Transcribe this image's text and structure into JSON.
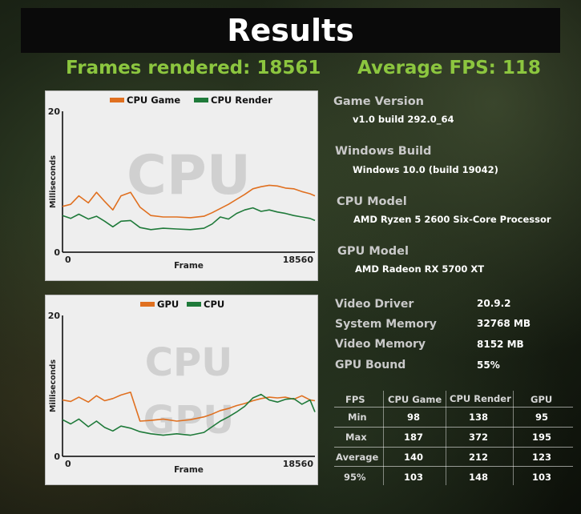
{
  "title": "Results",
  "frames_rendered": "Frames rendered: 18561",
  "average_fps": "Average FPS: 118",
  "info": [
    {
      "label": "Game Version",
      "value": "v1.0 build 292.0_64"
    },
    {
      "label": "Windows Build",
      "value": "Windows 10.0 (build 19042)"
    },
    {
      "label": "CPU Model",
      "value": "AMD Ryzen 5 2600 Six-Core Processor"
    },
    {
      "label": "GPU Model",
      "value": "AMD Radeon RX 5700 XT"
    }
  ],
  "stats": [
    {
      "label": "Video Driver",
      "value": "20.9.2"
    },
    {
      "label": "System Memory",
      "value": "32768 MB"
    },
    {
      "label": "Video Memory",
      "value": "8152 MB"
    },
    {
      "label": "GPU Bound",
      "value": "55%"
    }
  ],
  "fps_table": {
    "headers": [
      "FPS",
      "CPU Game",
      "CPU Render",
      "GPU"
    ],
    "rows": [
      {
        "label": "Min",
        "values": [
          "98",
          "138",
          "95"
        ]
      },
      {
        "label": "Max",
        "values": [
          "187",
          "372",
          "195"
        ]
      },
      {
        "label": "Average",
        "values": [
          "140",
          "212",
          "123"
        ]
      },
      {
        "label": "95%",
        "values": [
          "103",
          "148",
          "103"
        ]
      }
    ]
  },
  "colors": {
    "orange": "#e07020",
    "green": "#1f7a3a",
    "accent": "#8cc63f"
  },
  "chart_data": [
    {
      "type": "line",
      "watermark": "CPU",
      "xlabel": "Frame",
      "ylabel": "Milliseconds",
      "xlim": [
        0,
        18560
      ],
      "ylim": [
        0,
        20
      ],
      "x_ticks": [
        "0",
        "18560"
      ],
      "y_ticks": [
        "0",
        "20"
      ],
      "legend": "top-center",
      "x": [
        0,
        600,
        1200,
        1900,
        2500,
        3100,
        3700,
        4300,
        5000,
        5700,
        6500,
        7400,
        8400,
        9400,
        10400,
        11000,
        11600,
        12200,
        12800,
        13400,
        14000,
        14600,
        15200,
        15800,
        16400,
        17000,
        17600,
        18200,
        18560
      ],
      "series": [
        {
          "name": "CPU Game",
          "color": "#e07020",
          "values": [
            6.5,
            6.8,
            8.0,
            7.0,
            8.5,
            7.2,
            6.0,
            8.0,
            8.5,
            6.4,
            5.2,
            5.0,
            5.0,
            4.9,
            5.1,
            5.6,
            6.2,
            6.8,
            7.5,
            8.2,
            9.0,
            9.3,
            9.5,
            9.4,
            9.1,
            9.0,
            8.6,
            8.3,
            8.0
          ]
        },
        {
          "name": "CPU Render",
          "color": "#1f7a3a",
          "values": [
            5.2,
            4.8,
            5.4,
            4.7,
            5.1,
            4.4,
            3.6,
            4.4,
            4.5,
            3.5,
            3.2,
            3.4,
            3.3,
            3.2,
            3.4,
            4.0,
            5.0,
            4.7,
            5.5,
            6.0,
            6.3,
            5.8,
            6.0,
            5.7,
            5.5,
            5.2,
            5.0,
            4.8,
            4.5
          ]
        }
      ]
    },
    {
      "type": "line",
      "watermark": "CPU GPU",
      "xlabel": "Frame",
      "ylabel": "Milliseconds",
      "xlim": [
        0,
        18560
      ],
      "ylim": [
        0,
        20
      ],
      "x_ticks": [
        "0",
        "18560"
      ],
      "y_ticks": [
        "0",
        "20"
      ],
      "legend": "top-center",
      "x": [
        0,
        600,
        1200,
        1900,
        2500,
        3100,
        3700,
        4300,
        5000,
        5700,
        6500,
        7400,
        8400,
        9400,
        10400,
        11000,
        11600,
        12200,
        12800,
        13400,
        14000,
        14600,
        15200,
        15800,
        16400,
        17000,
        17600,
        18200,
        18560
      ],
      "series": [
        {
          "name": "GPU",
          "color": "#e07020",
          "values": [
            8.0,
            7.8,
            8.4,
            7.7,
            8.6,
            7.9,
            8.2,
            8.7,
            9.1,
            5.0,
            5.1,
            5.3,
            5.0,
            5.2,
            5.6,
            6.0,
            6.5,
            6.8,
            7.2,
            7.5,
            7.9,
            8.2,
            8.4,
            8.3,
            8.4,
            8.1,
            8.6,
            8.0,
            7.9
          ]
        },
        {
          "name": "CPU",
          "color": "#1f7a3a",
          "values": [
            5.2,
            4.6,
            5.3,
            4.2,
            5.0,
            4.1,
            3.6,
            4.3,
            4.0,
            3.5,
            3.2,
            3.0,
            3.2,
            3.0,
            3.4,
            4.2,
            5.0,
            5.6,
            6.3,
            7.1,
            8.3,
            8.8,
            8.0,
            7.7,
            8.1,
            8.2,
            7.4,
            8.0,
            6.3
          ]
        }
      ]
    }
  ]
}
